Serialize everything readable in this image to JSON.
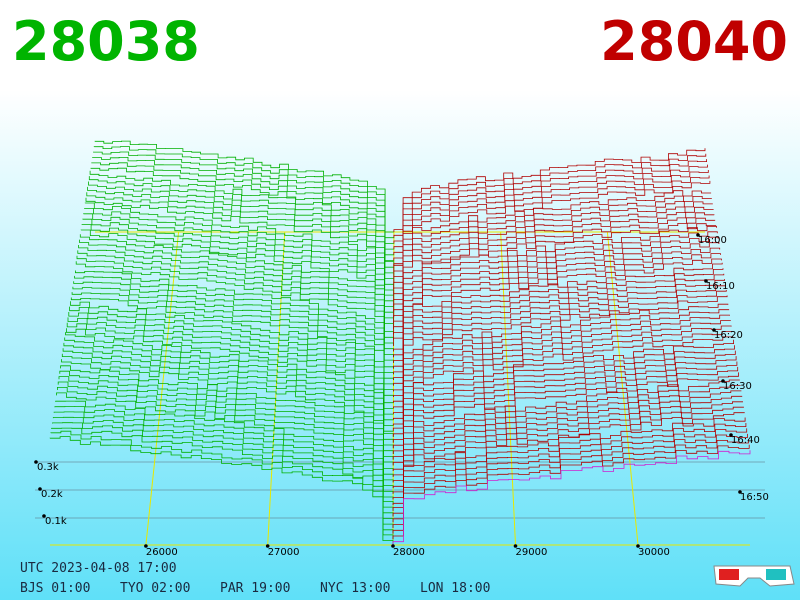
{
  "header": {
    "bid": "28038",
    "ask": "28040"
  },
  "price_axis": {
    "ticks": [
      "26000",
      "27000",
      "28000",
      "29000",
      "30000"
    ]
  },
  "volume_axis": {
    "ticks": [
      "0.3k",
      "0.2k",
      "0.1k"
    ]
  },
  "time_axis": {
    "ticks": [
      "16:00",
      "16:10",
      "16:20",
      "16:30",
      "16:40",
      "16:50"
    ]
  },
  "footer": {
    "utc": "UTC 2023-04-08 17:00",
    "zones": [
      "BJS 01:00",
      "TYO 02:00",
      "PAR 19:00",
      "NYC 13:00",
      "LON 18:00"
    ]
  }
}
